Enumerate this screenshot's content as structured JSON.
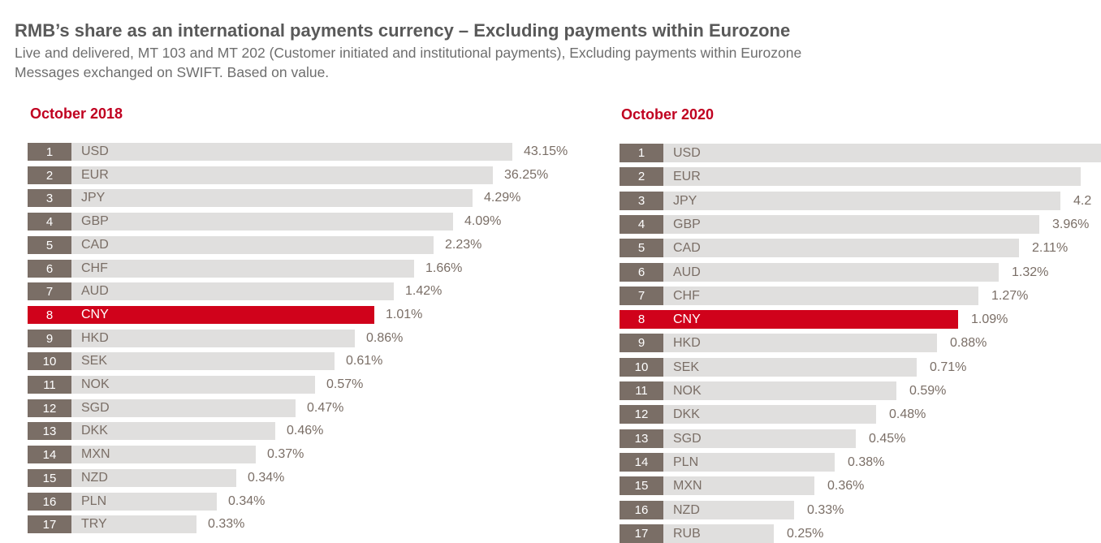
{
  "title": "RMB’s share as an international payments currency – Excluding payments within Eurozone",
  "subtitle_line1": "Live and delivered,  MT 103 and MT 202 (Customer initiated and institutional payments), Excluding payments within Eurozone",
  "subtitle_line2": "Messages exchanged on SWIFT. Based on value.",
  "colors": {
    "rank_box": "#7a6e66",
    "bar": "#e0dfde",
    "highlight": "#d0021b",
    "panel_title": "#c00020",
    "text": "#7a6e66"
  },
  "chart_data": [
    {
      "type": "bar",
      "orientation": "horizontal",
      "title": "October 2018",
      "highlight": "CNY",
      "ranks": [
        "1",
        "2",
        "3",
        "4",
        "5",
        "6",
        "7",
        "8",
        "9",
        "10",
        "11",
        "12",
        "13",
        "14",
        "15",
        "16",
        "17"
      ],
      "categories": [
        "USD",
        "EUR",
        "JPY",
        "GBP",
        "CAD",
        "CHF",
        "AUD",
        "CNY",
        "HKD",
        "SEK",
        "NOK",
        "SGD",
        "DKK",
        "MXN",
        "NZD",
        "PLN",
        "TRY"
      ],
      "labels": [
        "43.15%",
        "36.25%",
        "4.29%",
        "4.09%",
        "2.23%",
        "1.66%",
        "1.42%",
        "1.01%",
        "0.86%",
        "0.61%",
        "0.57%",
        "0.47%",
        "0.46%",
        "0.37%",
        "0.34%",
        "0.34%",
        "0.33%"
      ],
      "values": [
        43.15,
        36.25,
        4.29,
        4.09,
        2.23,
        1.66,
        1.42,
        1.01,
        0.86,
        0.61,
        0.57,
        0.47,
        0.46,
        0.37,
        0.34,
        0.34,
        0.33
      ],
      "scale": "rank-based bar lengths (not proportional to value)"
    },
    {
      "type": "bar",
      "orientation": "horizontal",
      "title": "October 2020",
      "highlight": "CNY",
      "ranks": [
        "1",
        "2",
        "3",
        "4",
        "5",
        "6",
        "7",
        "8",
        "9",
        "10",
        "11",
        "12",
        "13",
        "14",
        "15",
        "16",
        "17"
      ],
      "categories": [
        "USD",
        "EUR",
        "JPY",
        "GBP",
        "CAD",
        "AUD",
        "CHF",
        "CNY",
        "HKD",
        "SEK",
        "NOK",
        "DKK",
        "SGD",
        "PLN",
        "MXN",
        "NZD",
        "RUB"
      ],
      "labels": [
        "",
        "",
        "4.2",
        "3.96%",
        "2.11%",
        "1.32%",
        "1.27%",
        "1.09%",
        "0.88%",
        "0.71%",
        "0.59%",
        "0.48%",
        "0.45%",
        "0.38%",
        "0.36%",
        "0.33%",
        "0.25%"
      ],
      "values": [
        null,
        null,
        4.2,
        3.96,
        2.11,
        1.32,
        1.27,
        1.09,
        0.88,
        0.71,
        0.59,
        0.48,
        0.45,
        0.38,
        0.36,
        0.33,
        0.25
      ],
      "scale": "rank-based bar lengths (not proportional to value)"
    }
  ]
}
